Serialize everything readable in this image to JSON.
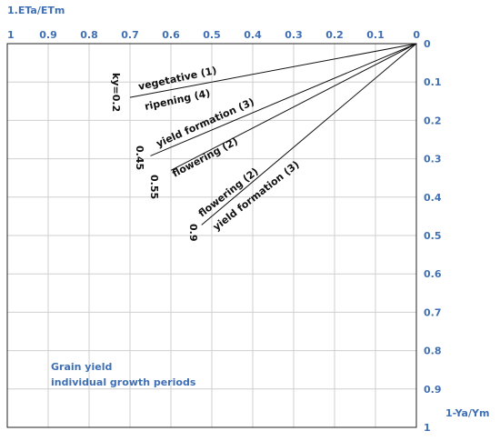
{
  "chart_data": {
    "type": "line",
    "xlabel": "1.ETa/ETm",
    "ylabel": "1-Ya/Ym",
    "x_ticks": [
      "1",
      "0.9",
      "0.8",
      "0.7",
      "0.6",
      "0.5",
      "0.4",
      "0.3",
      "0.2",
      "0.1",
      "0"
    ],
    "y_ticks": [
      "0",
      "0.1",
      "0.2",
      "0.3",
      "0.4",
      "0.5",
      "0.6",
      "0.7",
      "0.8",
      "0.9",
      "1"
    ],
    "xlim": [
      1,
      0
    ],
    "ylim": [
      0,
      1
    ],
    "x_reversed": true,
    "y_inverted": true,
    "grid": true,
    "annotation": [
      "Grain yield",
      "individual growth periods"
    ],
    "series": [
      {
        "ky": "ky=0.2",
        "labels": [
          "vegetative (1)",
          "ripening (4)"
        ],
        "x": [
          0,
          0.7
        ],
        "y": [
          0,
          0.14
        ]
      },
      {
        "ky": "0.45",
        "labels": [
          "yield formation (3)"
        ],
        "x": [
          0,
          0.65
        ],
        "y": [
          0,
          0.2925
        ]
      },
      {
        "ky": "0.55",
        "labels": [
          "flowering (2)"
        ],
        "x": [
          0,
          0.6
        ],
        "y": [
          0,
          0.33
        ]
      },
      {
        "ky": "0.9",
        "labels": [
          "flowering (2)",
          "yield formation (3)"
        ],
        "x": [
          0,
          0.525
        ],
        "y": [
          0,
          0.4725
        ]
      }
    ]
  }
}
